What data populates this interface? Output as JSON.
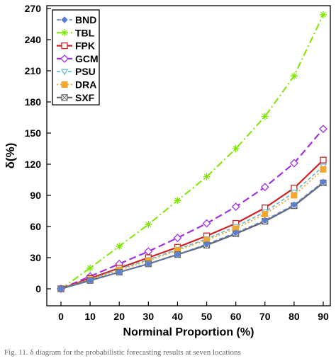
{
  "caption": "Fig. 11. δ diagram for the probabilistic forecasting results at seven locations",
  "chart_data": {
    "type": "line",
    "xlabel": "Norminal Proportion (%)",
    "ylabel": "δ(%)",
    "xlim": [
      0,
      90
    ],
    "ylim": [
      0,
      270
    ],
    "x_ticks": [
      0,
      10,
      20,
      30,
      40,
      50,
      60,
      70,
      80,
      90
    ],
    "y_ticks": [
      0,
      30,
      60,
      90,
      120,
      150,
      180,
      210,
      240,
      270
    ],
    "x": [
      0,
      10,
      20,
      30,
      40,
      50,
      60,
      70,
      80,
      90
    ],
    "grid": false,
    "legend_position": "top-left",
    "series": [
      {
        "name": "BND",
        "values": [
          0,
          8,
          16,
          24,
          33,
          43,
          54,
          66,
          81,
          103
        ],
        "color": "#5b7fd0",
        "dash": "6,3",
        "marker": "diamond-filled",
        "width": 1.6
      },
      {
        "name": "TBL",
        "values": [
          0,
          20,
          41,
          62,
          85,
          108,
          135,
          166,
          205,
          264
        ],
        "color": "#7ee600",
        "dash": "10,4,2,4",
        "marker": "asterisk",
        "width": 2
      },
      {
        "name": "FPK",
        "values": [
          0,
          10,
          20,
          30,
          40,
          51,
          63,
          78,
          97,
          124
        ],
        "color": "#cc2222",
        "dash": "",
        "marker": "square-open",
        "width": 2.2
      },
      {
        "name": "GCM",
        "values": [
          0,
          12,
          24,
          36,
          49,
          63,
          79,
          98,
          121,
          154
        ],
        "color": "#a030e0",
        "dash": "10,5",
        "marker": "diamond-open",
        "width": 2.2
      },
      {
        "name": "PSU",
        "values": [
          0,
          9,
          19,
          28,
          38,
          48,
          60,
          74,
          93,
          118
        ],
        "color": "#60b8d0",
        "dash": "5,3",
        "marker": "triangle-open",
        "width": 1.6
      },
      {
        "name": "DRA",
        "values": [
          0,
          9,
          18,
          27,
          37,
          47,
          58,
          72,
          90,
          115
        ],
        "color": "#f2a830",
        "dash": "2,3",
        "marker": "square-filled",
        "width": 2
      },
      {
        "name": "SXF",
        "values": [
          0,
          8,
          16,
          24,
          33,
          42,
          53,
          65,
          80,
          102
        ],
        "color": "#666666",
        "dash": "",
        "marker": "square-x",
        "width": 2.2
      }
    ]
  }
}
